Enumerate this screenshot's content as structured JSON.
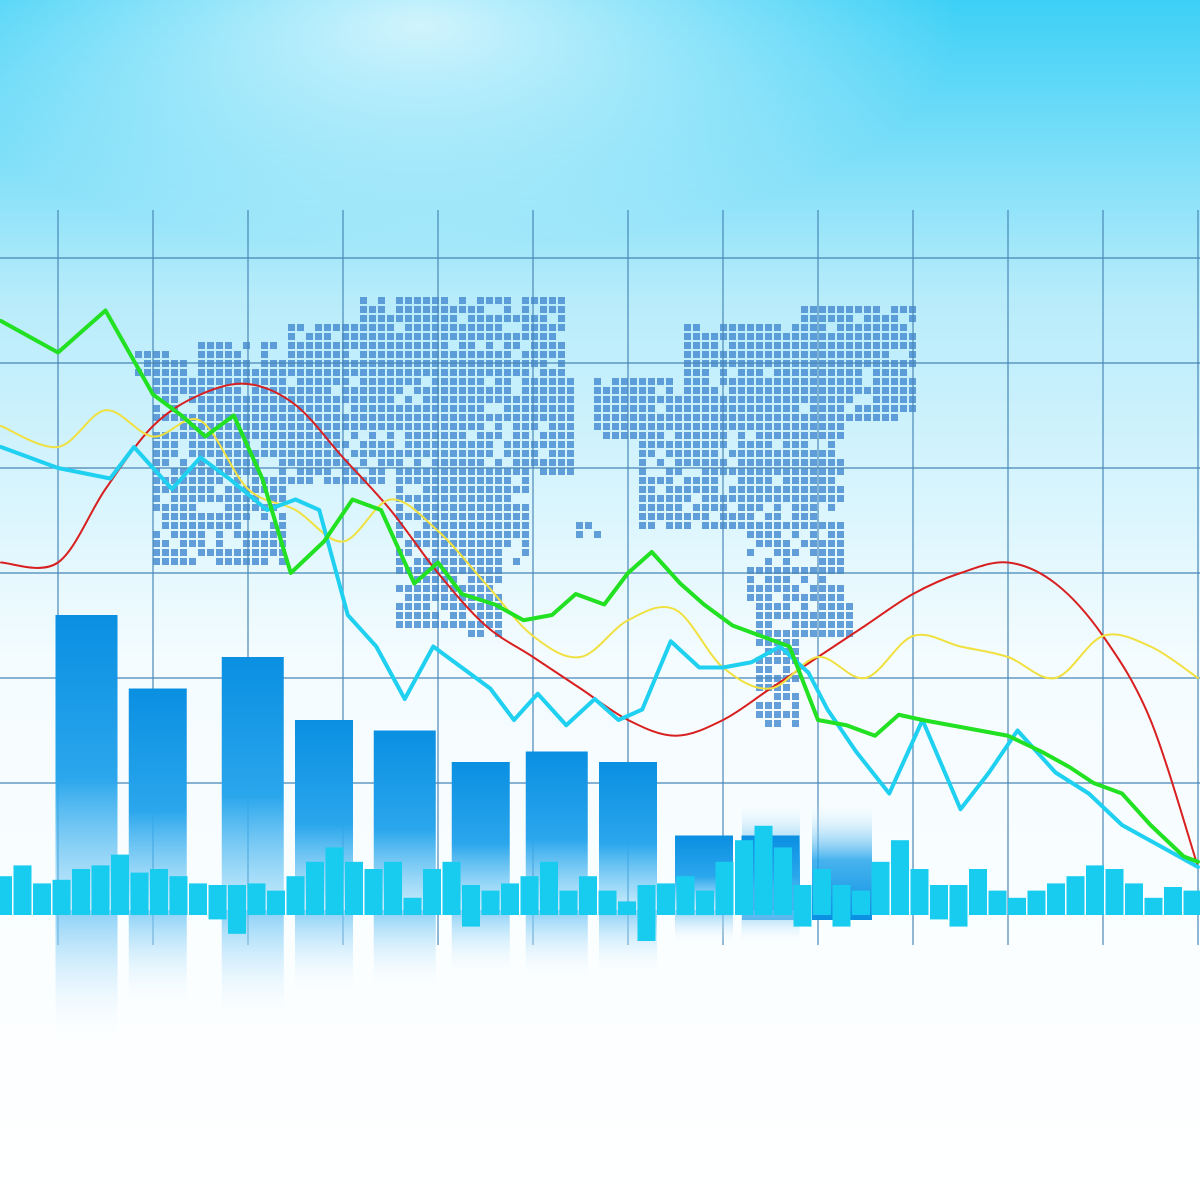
{
  "chart_data": {
    "type": "line",
    "title": "",
    "xlabel": "",
    "ylabel": "",
    "grid": true,
    "legend": "none",
    "x_range": [
      0,
      12
    ],
    "y_range": [
      0,
      7
    ],
    "series": [
      {
        "color": "#22e022",
        "width": 4,
        "smooth": false,
        "x": [
          -0.6,
          0,
          0.5,
          1,
          1.3,
          1.55,
          1.85,
          2.15,
          2.45,
          2.8,
          3.1,
          3.4,
          3.75,
          4,
          4.25,
          4.6,
          4.9,
          5.2,
          5.45,
          5.75,
          6,
          6.25,
          6.55,
          6.8,
          7.1,
          7.4,
          7.7,
          8,
          8.3,
          8.6,
          8.85,
          9.1,
          9.4,
          9.7,
          10,
          10.35,
          10.65,
          10.9,
          11.2,
          11.5,
          11.85,
          12
        ],
        "y": [
          6.4,
          6.1,
          6.5,
          5.7,
          5.5,
          5.3,
          5.5,
          4.9,
          4.0,
          4.3,
          4.7,
          4.6,
          3.9,
          4.1,
          3.8,
          3.7,
          3.55,
          3.6,
          3.8,
          3.7,
          4.0,
          4.2,
          3.9,
          3.7,
          3.5,
          3.4,
          3.3,
          2.6,
          2.55,
          2.45,
          2.65,
          2.6,
          2.55,
          2.5,
          2.45,
          2.3,
          2.15,
          2.0,
          1.9,
          1.6,
          1.3,
          1.25
        ]
      },
      {
        "color": "#20d0f0",
        "width": 4,
        "smooth": false,
        "x": [
          -0.6,
          0,
          0.55,
          0.8,
          1.2,
          1.5,
          1.8,
          2.2,
          2.5,
          2.75,
          3.05,
          3.35,
          3.65,
          3.95,
          4.25,
          4.55,
          4.8,
          5.05,
          5.35,
          5.65,
          5.9,
          6.15,
          6.45,
          6.75,
          7,
          7.3,
          7.6,
          7.9,
          8.1,
          8.4,
          8.75,
          9.1,
          9.5,
          9.8,
          10.1,
          10.5,
          10.85,
          11.2,
          11.6,
          12
        ],
        "y": [
          5.2,
          5.0,
          4.9,
          5.2,
          4.8,
          5.1,
          4.9,
          4.6,
          4.7,
          4.6,
          3.6,
          3.3,
          2.8,
          3.3,
          3.1,
          2.9,
          2.6,
          2.85,
          2.55,
          2.8,
          2.6,
          2.7,
          3.35,
          3.1,
          3.1,
          3.15,
          3.3,
          3.05,
          2.7,
          2.3,
          1.9,
          2.6,
          1.75,
          2.1,
          2.5,
          2.1,
          1.9,
          1.6,
          1.4,
          1.2
        ]
      },
      {
        "color": "#f0e040",
        "width": 2,
        "smooth": true,
        "x": [
          -0.6,
          0,
          0.5,
          1,
          1.5,
          2,
          2.5,
          3,
          3.5,
          4,
          4.5,
          5,
          5.5,
          6,
          6.5,
          7,
          7.5,
          8,
          8.5,
          9,
          9.5,
          10,
          10.5,
          11,
          11.5,
          12
        ],
        "y": [
          5.4,
          5.2,
          5.55,
          5.3,
          5.45,
          4.8,
          4.6,
          4.3,
          4.7,
          4.4,
          3.9,
          3.4,
          3.2,
          3.55,
          3.65,
          3.1,
          2.9,
          3.2,
          3.0,
          3.4,
          3.3,
          3.2,
          3.0,
          3.4,
          3.3,
          3.0
        ]
      },
      {
        "color": "#d82020",
        "width": 2,
        "smooth": true,
        "x": [
          -0.6,
          0,
          0.5,
          1,
          1.5,
          2,
          2.5,
          3,
          3.5,
          4,
          4.5,
          5,
          5.5,
          6,
          6.5,
          7,
          7.5,
          8,
          8.5,
          9,
          9.5,
          10,
          10.5,
          11,
          11.5,
          12
        ],
        "y": [
          4.1,
          4.1,
          4.8,
          5.4,
          5.7,
          5.8,
          5.6,
          5.1,
          4.6,
          4.0,
          3.5,
          3.2,
          2.9,
          2.6,
          2.45,
          2.6,
          2.9,
          3.2,
          3.5,
          3.8,
          4.0,
          4.1,
          3.9,
          3.4,
          2.6,
          1.2
        ]
      }
    ],
    "bars_front": {
      "color": "#1390e0",
      "x": [
        0.3,
        1.05,
        2.05,
        2.8,
        3.65,
        4.45,
        5.25,
        6.0,
        6.8,
        7.5
      ],
      "y": [
        3.6,
        2.9,
        3.2,
        2.6,
        2.5,
        2.2,
        2.3,
        2.2,
        1.5,
        1.5
      ]
    },
    "volume_bars": {
      "color": "#18ccf0",
      "values": [
        0.4,
        0.55,
        0.3,
        0.35,
        0.5,
        0.55,
        0.7,
        0.45,
        0.5,
        0.4,
        0.3,
        -0.2,
        -0.4,
        0.3,
        0.2,
        0.4,
        0.6,
        0.8,
        0.6,
        0.5,
        0.6,
        0.1,
        0.5,
        0.6,
        -0.3,
        0.2,
        0.3,
        0.4,
        0.6,
        0.2,
        0.4,
        0.2,
        0.05,
        -0.5,
        0.3,
        0.4,
        0.2,
        0.6,
        0.9,
        1.1,
        0.8,
        -0.3,
        0.5,
        -0.3,
        0.2,
        0.6,
        0.9,
        0.5,
        -0.2,
        -0.3,
        0.5,
        0.2,
        0.1,
        0.2,
        0.3,
        0.4,
        0.55,
        0.5,
        0.3,
        0.1,
        0.25,
        0.2,
        0.1,
        0.2,
        0.2
      ]
    }
  }
}
